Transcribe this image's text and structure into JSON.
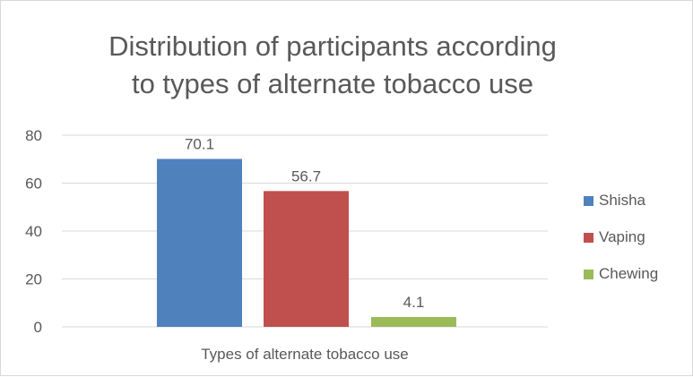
{
  "chart_data": {
    "type": "bar",
    "title": "Distribution of participants according to types of alternate tobacco use",
    "title_lines": [
      "Distribution of participants according",
      "to types of alternate tobacco use"
    ],
    "categories": [
      "Types of alternate tobacco use"
    ],
    "series": [
      {
        "name": "Shisha",
        "values": [
          70.1
        ],
        "color": "#4f81bd"
      },
      {
        "name": "Vaping",
        "values": [
          56.7
        ],
        "color": "#c0504d"
      },
      {
        "name": "Chewing",
        "values": [
          4.1
        ],
        "color": "#9bbb59"
      }
    ],
    "xlabel": "",
    "ylabel": "",
    "ylim": [
      0,
      80
    ],
    "yticks": [
      0,
      20,
      40,
      60,
      80
    ],
    "ytick_labels": [
      "0",
      "20",
      "40",
      "60",
      "80"
    ],
    "data_labels": [
      "70.1",
      "56.7",
      "4.1"
    ],
    "grid": true,
    "legend_position": "right",
    "colors": {
      "grid": "#d9d9d9",
      "text": "#595959",
      "border": "#d9d9d9"
    }
  }
}
